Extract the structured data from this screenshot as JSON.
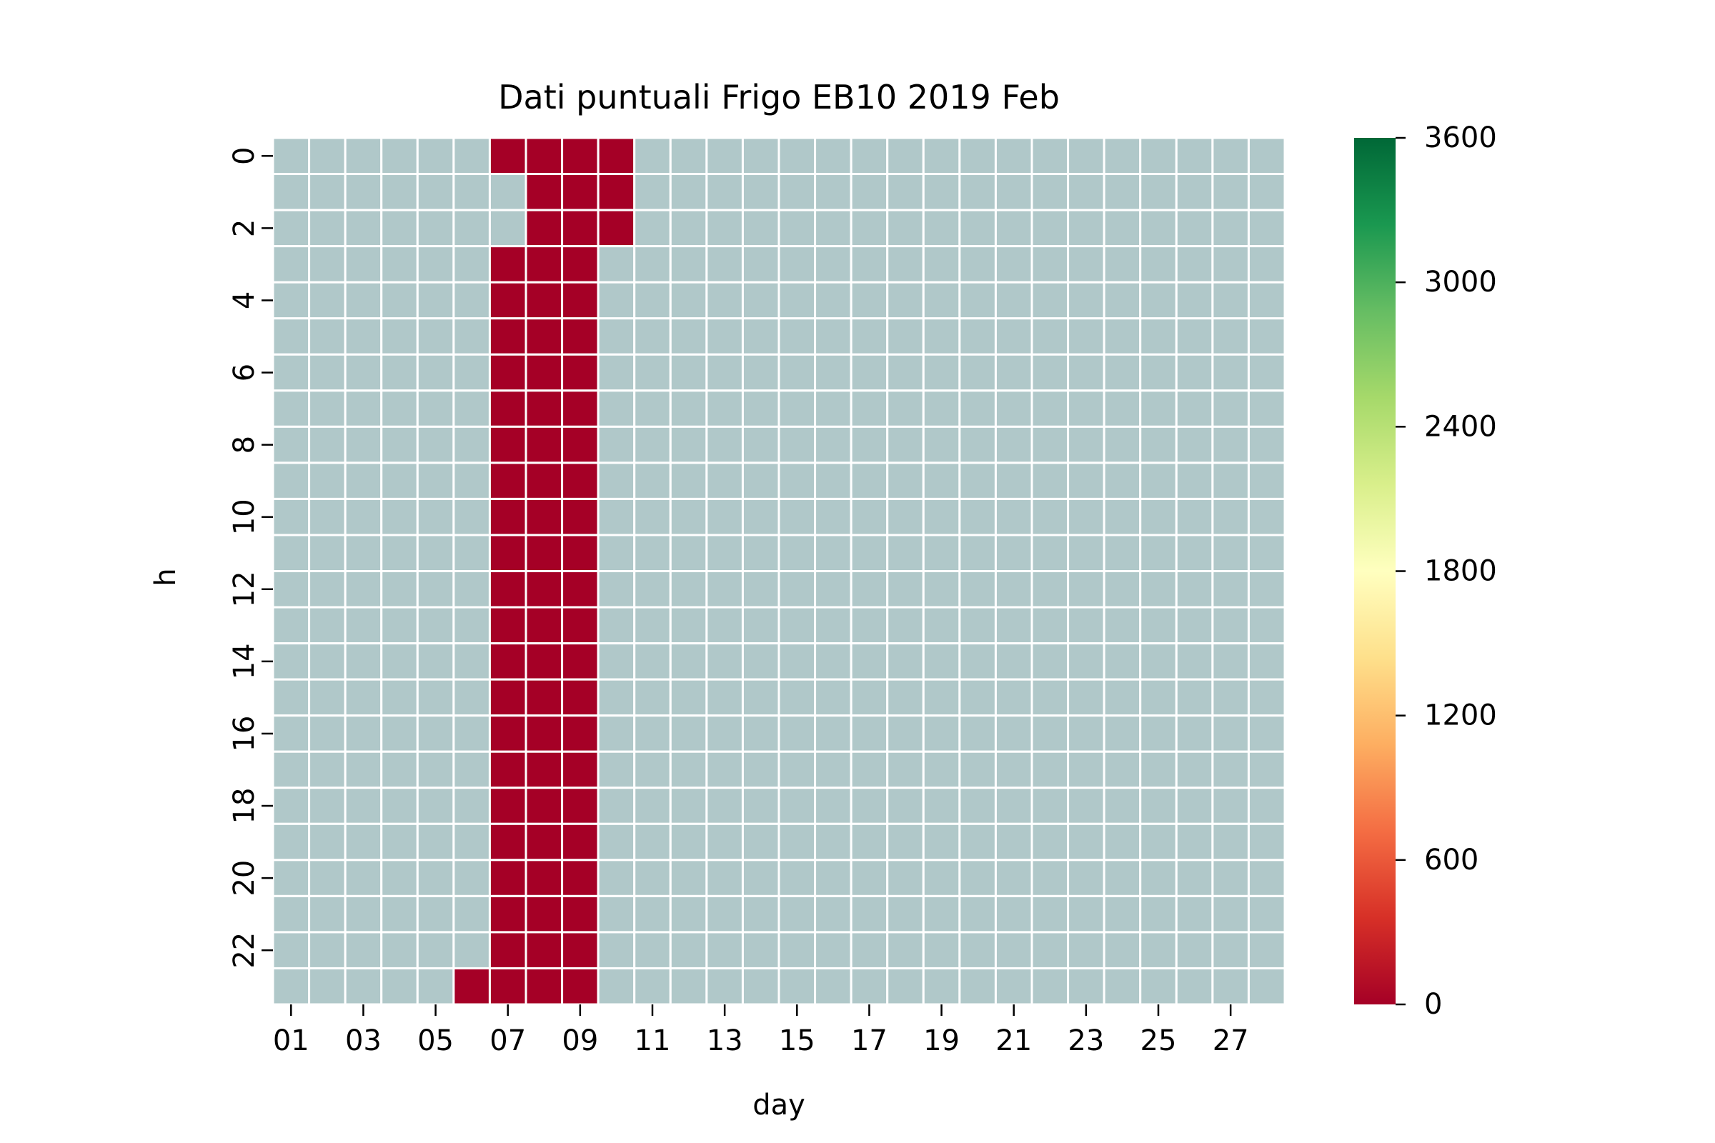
{
  "chart_data": {
    "type": "heatmap",
    "title": "Dati puntuali Frigo EB10 2019 Feb",
    "xlabel": "day",
    "ylabel": "h",
    "x_categories": [
      "01",
      "02",
      "03",
      "04",
      "05",
      "06",
      "07",
      "08",
      "09",
      "10",
      "11",
      "12",
      "13",
      "14",
      "15",
      "16",
      "17",
      "18",
      "19",
      "20",
      "21",
      "22",
      "23",
      "24",
      "25",
      "26",
      "27",
      "28"
    ],
    "y_categories": [
      0,
      1,
      2,
      3,
      4,
      5,
      6,
      7,
      8,
      9,
      10,
      11,
      12,
      13,
      14,
      15,
      16,
      17,
      18,
      19,
      20,
      21,
      22,
      23
    ],
    "x_tick_labels": [
      "01",
      "03",
      "05",
      "07",
      "09",
      "11",
      "13",
      "15",
      "17",
      "19",
      "21",
      "23",
      "25",
      "27"
    ],
    "y_tick_labels": [
      "0",
      "2",
      "4",
      "6",
      "8",
      "10",
      "12",
      "14",
      "16",
      "18",
      "20",
      "22"
    ],
    "colorbar": {
      "vmin": 0,
      "vmax": 3600,
      "ticks": [
        "0",
        "600",
        "1200",
        "1800",
        "2400",
        "3000",
        "3600"
      ],
      "colormap": "RdYlGn"
    },
    "missing_color": "#b0c8c9",
    "cells": [
      {
        "day": "07",
        "h": [
          0,
          3,
          4,
          5,
          6,
          7,
          8,
          9,
          10,
          11,
          12,
          13,
          14,
          15,
          16,
          17,
          18,
          19,
          20,
          21,
          22,
          23
        ],
        "value": 0
      },
      {
        "day": "08",
        "h": [
          0,
          1,
          2,
          3,
          4,
          5,
          6,
          7,
          8,
          9,
          10,
          11,
          12,
          13,
          14,
          15,
          16,
          17,
          18,
          19,
          20,
          21,
          22,
          23
        ],
        "value": 0
      },
      {
        "day": "09",
        "h": [
          0,
          1,
          2,
          3,
          4,
          5,
          6,
          7,
          8,
          9,
          10,
          11,
          12,
          13,
          14,
          15,
          16,
          17,
          18,
          19,
          20,
          21,
          22,
          23
        ],
        "value": 0
      },
      {
        "day": "10",
        "h": [
          0,
          1,
          2
        ],
        "value": 0
      },
      {
        "day": "06",
        "h": [
          23
        ],
        "value": 0
      }
    ]
  }
}
